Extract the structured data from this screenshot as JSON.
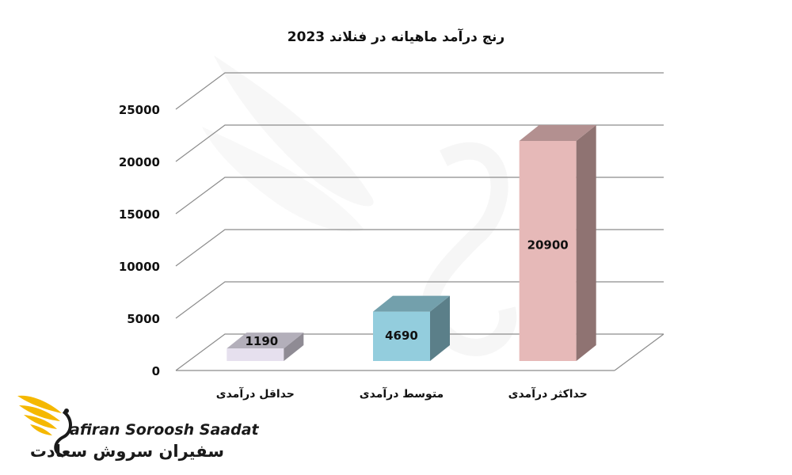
{
  "chart_data": {
    "type": "bar",
    "title": "رنج درآمد ماهیانه در فنلاند 2023",
    "categories": [
      "حداقل درآمدی",
      "متوسط درآمدی",
      "حداکثر درآمدی"
    ],
    "values": [
      1190,
      4690,
      20900
    ],
    "data_labels": [
      "1190",
      "4690",
      "20900"
    ],
    "ylim": [
      0,
      25000
    ],
    "yticks": [
      "0",
      "5000",
      "10000",
      "15000",
      "20000",
      "25000"
    ],
    "grid": true,
    "three_d": true,
    "bar_colors": [
      "#e6e0ee",
      "#93cddd",
      "#e6b9b8"
    ]
  },
  "brand": {
    "name_en": "afiran Soroosh Saadat",
    "name_fa": "سفیران سروش سعادت",
    "accent": "#f5b800"
  }
}
